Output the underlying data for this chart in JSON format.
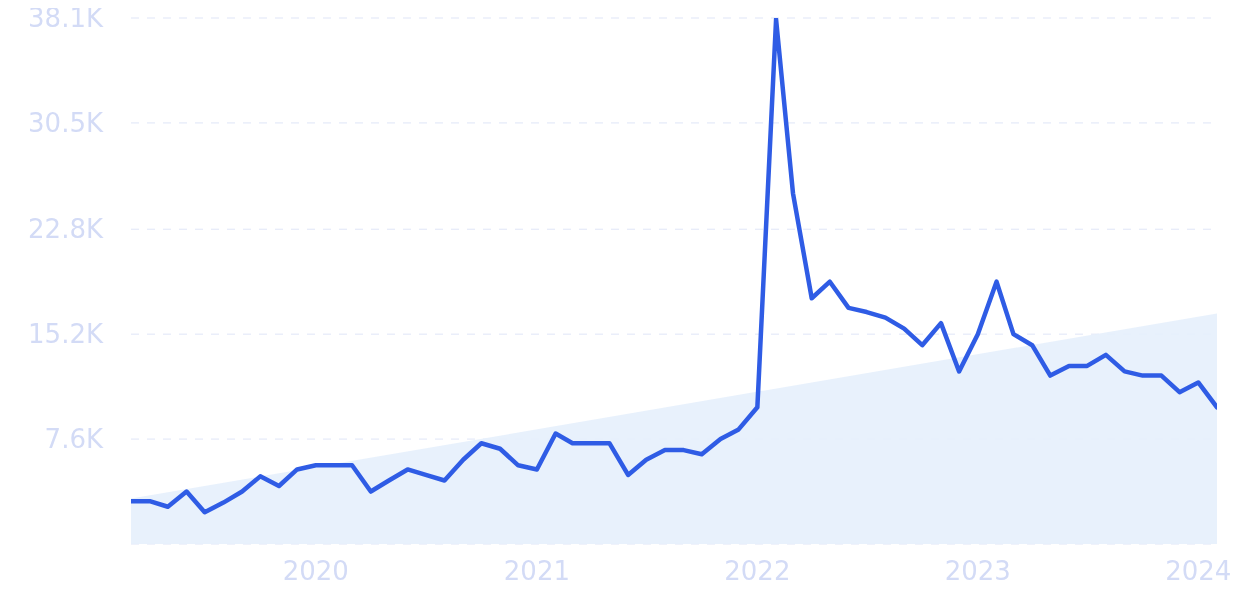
{
  "chart_data": {
    "type": "line",
    "x": [
      "2019-03",
      "2019-04",
      "2019-05",
      "2019-06",
      "2019-07",
      "2019-08",
      "2019-09",
      "2019-10",
      "2019-11",
      "2019-12",
      "2020-01",
      "2020-02",
      "2020-03",
      "2020-04",
      "2020-05",
      "2020-06",
      "2020-07",
      "2020-08",
      "2020-09",
      "2020-10",
      "2020-11",
      "2020-12",
      "2021-01",
      "2021-02",
      "2021-03",
      "2021-04",
      "2021-05",
      "2021-06",
      "2021-07",
      "2021-08",
      "2021-09",
      "2021-10",
      "2021-11",
      "2021-12",
      "2022-01",
      "2022-02",
      "2022-03",
      "2022-04",
      "2022-05",
      "2022-06",
      "2022-07",
      "2022-08",
      "2022-09",
      "2022-10",
      "2022-11",
      "2022-12",
      "2023-01",
      "2023-02",
      "2023-03",
      "2023-04",
      "2023-05",
      "2023-06",
      "2023-07",
      "2023-08",
      "2023-09",
      "2023-10",
      "2023-11",
      "2023-12",
      "2024-01",
      "2024-02"
    ],
    "series": [
      {
        "type": "area",
        "color": "#e6effc",
        "x": [
          "2019-03",
          "2024-02"
        ],
        "values": [
          3300,
          16700
        ]
      },
      {
        "color": "#2f5ce5",
        "values": [
          3100,
          3100,
          2700,
          3800,
          2300,
          3000,
          3800,
          4900,
          4200,
          5400,
          5700,
          5700,
          5700,
          3800,
          4600,
          5400,
          5000,
          4600,
          6100,
          7300,
          6900,
          5700,
          5400,
          8000,
          7300,
          7300,
          7300,
          5000,
          6100,
          6800,
          6800,
          6500,
          7600,
          8300,
          9900,
          38000,
          25400,
          17800,
          19000,
          17100,
          16800,
          16400,
          15600,
          14400,
          16000,
          12500,
          15200,
          19000,
          15200,
          14400,
          12200,
          12900,
          12900,
          13700,
          12500,
          12200,
          12200,
          11000,
          11700,
          9900
        ]
      }
    ],
    "xlim": [
      "2019-03",
      "2024-02"
    ],
    "xticks": [
      "2020",
      "2021",
      "2022",
      "2023",
      "2024"
    ],
    "ylim": [
      0,
      38100
    ],
    "yticks": [
      {
        "value": 7600,
        "label": "7.6K"
      },
      {
        "value": 15200,
        "label": "15.2K"
      },
      {
        "value": 22800,
        "label": "22.8K"
      },
      {
        "value": 30500,
        "label": "30.5K"
      },
      {
        "value": 38100,
        "label": "38.1K"
      }
    ],
    "grid": "y",
    "marker": "none",
    "line_style": "solid"
  }
}
